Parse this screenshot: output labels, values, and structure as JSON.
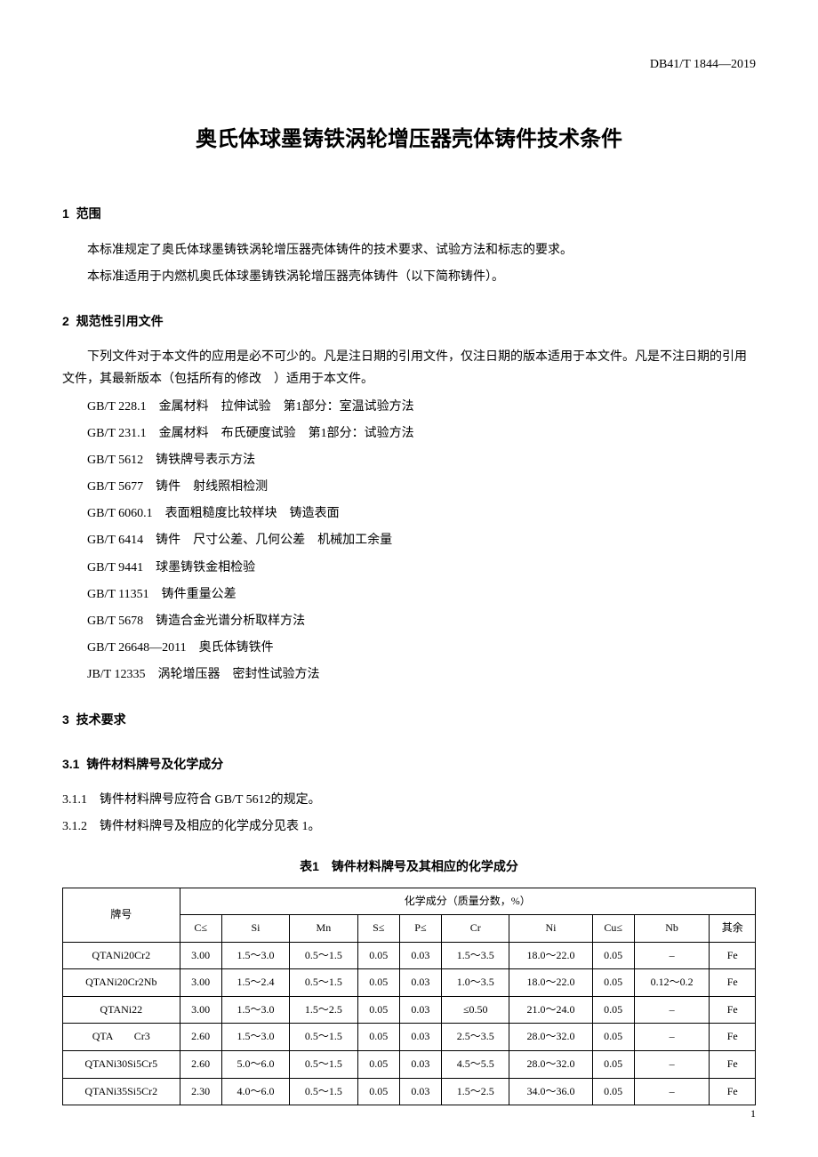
{
  "header_code": "DB41/T 1844—2019",
  "title": "奥氏体球墨铸铁涡轮增压器壳体铸件技术条件",
  "sections": {
    "s1": {
      "num": "1",
      "label": "范围",
      "p1": "本标准规定了奥氏体球墨铸铁涡轮增压器壳体铸件的技术要求、试验方法和标志的要求。",
      "p2": "本标准适用于内燃机奥氏体球墨铸铁涡轮增压器壳体铸件（以下简称铸件）。"
    },
    "s2": {
      "num": "2",
      "label": "规范性引用文件",
      "p1": "下列文件对于本文件的应用是必不可少的。凡是注日期的引用文件，仅注日期的版本适用于本文件。凡是不注日期的引用文件，其最新版本（包括所有的修改　）适用于本文件。",
      "refs": [
        "GB/T 228.1　金属材料　拉伸试验　第1部分：室温试验方法",
        "GB/T 231.1　金属材料　布氏硬度试验　第1部分：试验方法",
        "GB/T 5612　铸铁牌号表示方法",
        "GB/T 5677　铸件　射线照相检测",
        "GB/T 6060.1　表面粗糙度比较样块　铸造表面",
        "GB/T 6414　铸件　尺寸公差、几何公差　机械加工余量",
        "GB/T 9441　球墨铸铁金相检验",
        "GB/T 11351　铸件重量公差",
        "GB/T 5678　铸造合金光谱分析取样方法",
        "GB/T 26648—2011　奥氏体铸铁件",
        "JB/T 12335　涡轮增压器　密封性试验方法"
      ]
    },
    "s3": {
      "num": "3",
      "label": "技术要求"
    },
    "s31": {
      "num": "3.1",
      "label": "铸件材料牌号及化学成分",
      "p1": "3.1.1　铸件材料牌号应符合 GB/T 5612的规定。",
      "p2": "3.1.2　铸件材料牌号及相应的化学成分见表 1。"
    }
  },
  "table1": {
    "title": "表1　铸件材料牌号及其相应的化学成分",
    "header_grade": "牌号",
    "header_group": "化学成分（质量分数，%）",
    "columns": [
      "C≤",
      "Si",
      "Mn",
      "S≤",
      "P≤",
      "Cr",
      "Ni",
      "Cu≤",
      "Nb",
      "其余"
    ],
    "rows": [
      {
        "grade": "QTANi20Cr2",
        "c": "3.00",
        "si": "1.5～3.0",
        "mn": "0.5～1.5",
        "s": "0.05",
        "p": "0.03",
        "cr": "1.5～3.5",
        "ni": "18.0～22.0",
        "cu": "0.05",
        "nb": "–",
        "rest": "Fe"
      },
      {
        "grade": "QTANi20Cr2Nb",
        "c": "3.00",
        "si": "1.5～2.4",
        "mn": "0.5～1.5",
        "s": "0.05",
        "p": "0.03",
        "cr": "1.0～3.5",
        "ni": "18.0～22.0",
        "cu": "0.05",
        "nb": "0.12～0.2",
        "rest": "Fe"
      },
      {
        "grade": "QTANi22",
        "c": "3.00",
        "si": "1.5～3.0",
        "mn": "1.5～2.5",
        "s": "0.05",
        "p": "0.03",
        "cr": "≤0.50",
        "ni": "21.0～24.0",
        "cu": "0.05",
        "nb": "–",
        "rest": "Fe"
      },
      {
        "grade": "QTA　　Cr3",
        "c": "2.60",
        "si": "1.5～3.0",
        "mn": "0.5～1.5",
        "s": "0.05",
        "p": "0.03",
        "cr": "2.5～3.5",
        "ni": "28.0～32.0",
        "cu": "0.05",
        "nb": "–",
        "rest": "Fe"
      },
      {
        "grade": "QTANi30Si5Cr5",
        "c": "2.60",
        "si": "5.0～6.0",
        "mn": "0.5～1.5",
        "s": "0.05",
        "p": "0.03",
        "cr": "4.5～5.5",
        "ni": "28.0～32.0",
        "cu": "0.05",
        "nb": "–",
        "rest": "Fe"
      },
      {
        "grade": "QTANi35Si5Cr2",
        "c": "2.30",
        "si": "4.0～6.0",
        "mn": "0.5～1.5",
        "s": "0.05",
        "p": "0.03",
        "cr": "1.5～2.5",
        "ni": "34.0～36.0",
        "cu": "0.05",
        "nb": "–",
        "rest": "Fe"
      }
    ]
  },
  "page_number": "1"
}
